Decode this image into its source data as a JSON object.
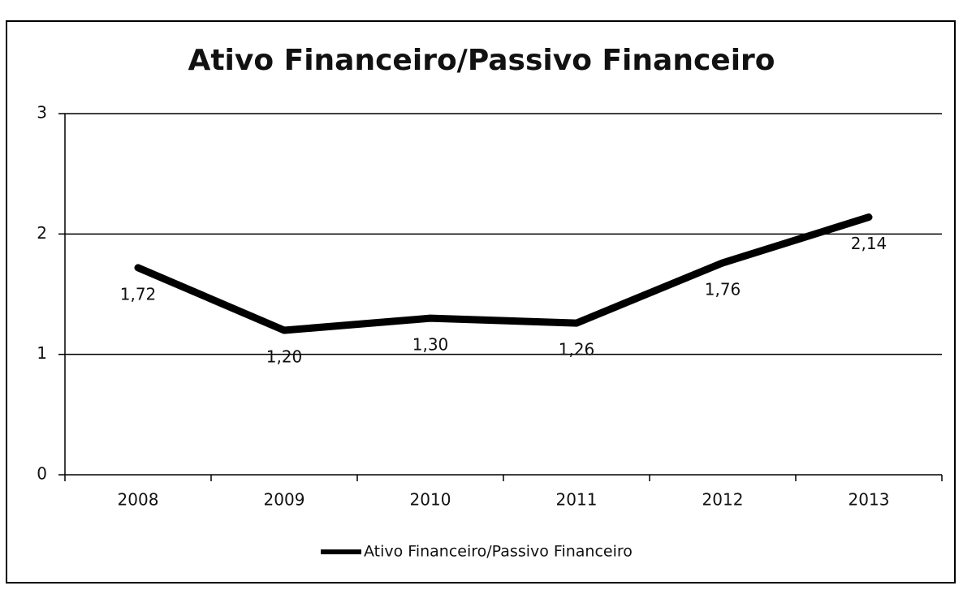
{
  "chart_data": {
    "type": "line",
    "title": "Ativo Financeiro/Passivo Financeiro",
    "categories": [
      "2008",
      "2009",
      "2010",
      "2011",
      "2012",
      "2013"
    ],
    "series": [
      {
        "name": "Ativo Financeiro/Passivo Financeiro",
        "color": "#000000",
        "values": [
          1.72,
          1.2,
          1.3,
          1.26,
          1.76,
          2.14
        ],
        "value_labels": [
          "1,72",
          "1,20",
          "1,30",
          "1,26",
          "1,76",
          "2,14"
        ]
      }
    ],
    "ylim": [
      0,
      3
    ],
    "yticks": [
      0,
      1,
      2,
      3
    ],
    "grid": true,
    "legend": "bottom"
  }
}
